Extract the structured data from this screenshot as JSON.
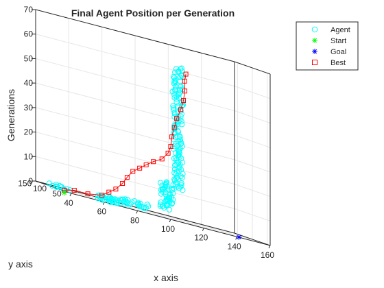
{
  "chart_data": {
    "type": "scatter3d",
    "title": "Final Agent Position per Generation",
    "xlabel": "x axis",
    "ylabel": "y axis",
    "zlabel": "Generations",
    "xlim": [
      40,
      160
    ],
    "ylim": [
      40,
      160
    ],
    "zlim": [
      0,
      70
    ],
    "x_ticks": [
      "40",
      "60",
      "80",
      "100",
      "120",
      "140",
      "160"
    ],
    "y_ticks": [
      "50",
      "100",
      "150"
    ],
    "z_ticks": [
      "0",
      "10",
      "20",
      "30",
      "40",
      "50",
      "60",
      "70"
    ],
    "grid": true,
    "legend_position": "top-right",
    "legend": [
      {
        "label": "Agent",
        "marker": "circle",
        "color": "#00ffff"
      },
      {
        "label": "Start",
        "marker": "asterisk",
        "color": "#00ff00"
      },
      {
        "label": "Goal",
        "marker": "asterisk",
        "color": "#0000ff"
      },
      {
        "label": "Best",
        "marker": "square",
        "color": "#ff0000"
      }
    ],
    "start": {
      "x": 46,
      "y": 97,
      "z": 0
    },
    "goal": {
      "x": 142,
      "y": 45,
      "z": 0
    },
    "best_path": [
      {
        "x": 46,
        "y": 97,
        "z": 0
      },
      {
        "x": 52,
        "y": 97,
        "z": 1
      },
      {
        "x": 60,
        "y": 96,
        "z": 1
      },
      {
        "x": 68,
        "y": 93,
        "z": 2
      },
      {
        "x": 72,
        "y": 92,
        "z": 4
      },
      {
        "x": 76,
        "y": 91,
        "z": 6
      },
      {
        "x": 80,
        "y": 91,
        "z": 9
      },
      {
        "x": 83,
        "y": 92,
        "z": 12
      },
      {
        "x": 87,
        "y": 95,
        "z": 15
      },
      {
        "x": 92,
        "y": 100,
        "z": 17
      },
      {
        "x": 97,
        "y": 106,
        "z": 19
      },
      {
        "x": 102,
        "y": 110,
        "z": 21
      },
      {
        "x": 108,
        "y": 114,
        "z": 23
      },
      {
        "x": 112,
        "y": 116,
        "z": 26
      },
      {
        "x": 114,
        "y": 118,
        "z": 29
      },
      {
        "x": 115,
        "y": 120,
        "z": 33
      },
      {
        "x": 117,
        "y": 123,
        "z": 37
      },
      {
        "x": 119,
        "y": 126,
        "z": 41
      },
      {
        "x": 122,
        "y": 129,
        "z": 45
      },
      {
        "x": 124,
        "y": 131,
        "z": 49
      },
      {
        "x": 125,
        "y": 132,
        "z": 53
      },
      {
        "x": 125,
        "y": 133,
        "z": 57
      },
      {
        "x": 126,
        "y": 134,
        "z": 60
      }
    ],
    "agent_clusters": [
      {
        "x": 74,
        "y": 96,
        "z_from": 0,
        "z_to": 2,
        "spread": 8,
        "count": 34
      },
      {
        "x": 90,
        "y": 104,
        "z_from": 1,
        "z_to": 3,
        "spread": 9,
        "count": 26
      },
      {
        "x": 50,
        "y": 128,
        "z_from": 0,
        "z_to": 1,
        "spread": 7,
        "count": 12
      },
      {
        "x": 112,
        "y": 120,
        "z_from": 3,
        "z_to": 14,
        "spread": 4,
        "count": 48
      },
      {
        "x": 120,
        "y": 126,
        "z_from": 12,
        "z_to": 62,
        "spread": 3,
        "count": 130
      }
    ]
  }
}
